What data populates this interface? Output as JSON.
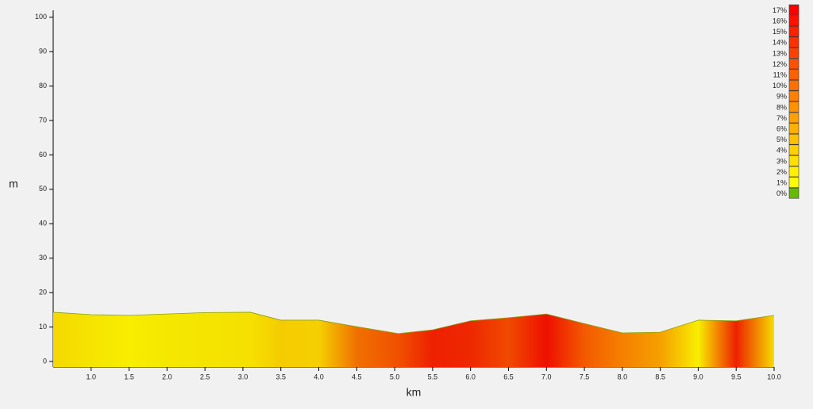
{
  "chart_data": {
    "type": "area",
    "x_label": "km",
    "y_label": "m",
    "x": [
      0.5,
      1.0,
      1.5,
      2.0,
      2.5,
      3.1,
      3.5,
      4.0,
      4.5,
      5.05,
      5.5,
      6.0,
      6.5,
      7.0,
      7.5,
      8.0,
      8.5,
      9.0,
      9.5,
      10.0
    ],
    "series": [
      {
        "values": [
          14.3,
          13.6,
          13.4,
          13.8,
          14.2,
          14.3,
          12.0,
          12.0,
          10.1,
          8.1,
          9.2,
          11.8,
          12.7,
          13.8,
          11.0,
          8.3,
          8.5,
          12.0,
          11.8,
          13.4
        ],
        "colors": [
          "#f5d800",
          "#f5e400",
          "#f8ee00",
          "#f5e800",
          "#f5e400",
          "#f5e000",
          "#f5cc00",
          "#f5d000",
          "#f07000",
          "#f05000",
          "#ee2000",
          "#ee2800",
          "#f04a00",
          "#ee1000",
          "#f35a00",
          "#f58000",
          "#f5a000",
          "#f8ee00",
          "#ee2000",
          "#f5dc00"
        ],
        "line_color": "#8aa000"
      }
    ],
    "xlim": [
      0.5,
      10.0
    ],
    "xticks": [
      {
        "value": 1,
        "label": "1.0"
      },
      {
        "value": 1.5,
        "label": "1.5"
      },
      {
        "value": 2,
        "label": "2.0"
      },
      {
        "value": 2.5,
        "label": "2.5"
      },
      {
        "value": 3,
        "label": "3.0"
      },
      {
        "value": 3.5,
        "label": "3.5"
      },
      {
        "value": 4,
        "label": "4.0"
      },
      {
        "value": 4.5,
        "label": "4.5"
      },
      {
        "value": 5,
        "label": "5.0"
      },
      {
        "value": 5.5,
        "label": "5.5"
      },
      {
        "value": 6,
        "label": "6.0"
      },
      {
        "value": 6.5,
        "label": "6.5"
      },
      {
        "value": 7,
        "label": "7.0"
      },
      {
        "value": 7.5,
        "label": "7.5"
      },
      {
        "value": 8,
        "label": "8.0"
      },
      {
        "value": 8.5,
        "label": "8.5"
      },
      {
        "value": 9,
        "label": "9.0"
      },
      {
        "value": 9.5,
        "label": "9.5"
      },
      {
        "value": 10,
        "label": "10.0"
      }
    ],
    "ylim": [
      -1.6,
      102
    ],
    "yticks": [
      0,
      10,
      20,
      30,
      40,
      50,
      60,
      70,
      80,
      90,
      100
    ],
    "legend": [
      {
        "label": "17%",
        "color": "#ff0000"
      },
      {
        "label": "16%",
        "color": "#ff1000"
      },
      {
        "label": "15%",
        "color": "#ff2000"
      },
      {
        "label": "14%",
        "color": "#ff3000"
      },
      {
        "label": "13%",
        "color": "#ff4000"
      },
      {
        "label": "12%",
        "color": "#ff5000"
      },
      {
        "label": "11%",
        "color": "#ff6000"
      },
      {
        "label": "10%",
        "color": "#ff7000"
      },
      {
        "label": "9%",
        "color": "#ff8000"
      },
      {
        "label": "8%",
        "color": "#ff9000"
      },
      {
        "label": "7%",
        "color": "#ffa000"
      },
      {
        "label": "6%",
        "color": "#ffb000"
      },
      {
        "label": "5%",
        "color": "#ffc000"
      },
      {
        "label": "4%",
        "color": "#ffd000"
      },
      {
        "label": "3%",
        "color": "#ffe000"
      },
      {
        "label": "2%",
        "color": "#fff000"
      },
      {
        "label": "1%",
        "color": "#ffff00"
      },
      {
        "label": "0%",
        "color": "#66bb00"
      }
    ]
  }
}
